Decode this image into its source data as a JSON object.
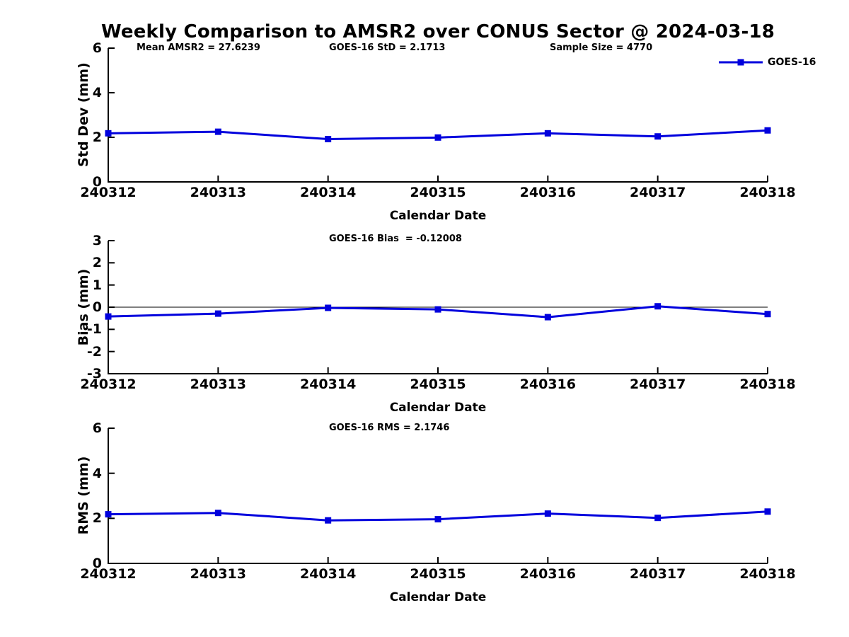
{
  "title": "Weekly Comparison to AMSR2 over CONUS Sector @ 2024-03-18",
  "annotations": [
    {
      "text": "Mean AMSR2 = 27.6239"
    },
    {
      "text": "GOES-16 StD = 2.1713"
    },
    {
      "text": "Sample Size = 4770"
    }
  ],
  "legend": {
    "label": "GOES-16",
    "color": "#0000dd",
    "marker": "square",
    "position": "top-right"
  },
  "colors": {
    "line": "#0000dd",
    "axis": "#000000",
    "text": "#000000",
    "background": "#ffffff"
  },
  "chart_data": [
    {
      "type": "line",
      "title": "",
      "ylabel": "Std Dev (mm)",
      "xlabel": "Calendar Date",
      "categories": [
        "240312",
        "240313",
        "240314",
        "240315",
        "240316",
        "240317",
        "240318"
      ],
      "series": [
        {
          "name": "GOES-16",
          "color": "#0000dd",
          "marker": "square",
          "values": [
            2.18,
            2.25,
            1.92,
            1.99,
            2.18,
            2.04,
            2.31
          ]
        }
      ],
      "ylim": [
        0,
        6
      ],
      "yticks": [
        0,
        2,
        4,
        6
      ],
      "zero_line": false,
      "grid": false
    },
    {
      "type": "line",
      "title": "GOES-16 Bias  = -0.12008",
      "ylabel": "Bias (mm)",
      "xlabel": "Calendar Date",
      "categories": [
        "240312",
        "240313",
        "240314",
        "240315",
        "240316",
        "240317",
        "240318"
      ],
      "series": [
        {
          "name": "GOES-16",
          "color": "#0000dd",
          "marker": "square",
          "values": [
            -0.42,
            -0.29,
            -0.03,
            -0.1,
            -0.45,
            0.04,
            -0.31
          ]
        }
      ],
      "ylim": [
        -3,
        3
      ],
      "yticks": [
        -3,
        -2,
        -1,
        0,
        1,
        2,
        3
      ],
      "zero_line": true,
      "grid": false
    },
    {
      "type": "line",
      "title": "GOES-16 RMS = 2.1746",
      "ylabel": "RMS (mm)",
      "xlabel": "Calendar Date",
      "categories": [
        "240312",
        "240313",
        "240314",
        "240315",
        "240316",
        "240317",
        "240318"
      ],
      "series": [
        {
          "name": "GOES-16",
          "color": "#0000dd",
          "marker": "square",
          "values": [
            2.18,
            2.24,
            1.91,
            1.96,
            2.21,
            2.02,
            2.3
          ]
        }
      ],
      "ylim": [
        0,
        6
      ],
      "yticks": [
        0,
        2,
        4,
        6
      ],
      "zero_line": false,
      "grid": false
    }
  ]
}
